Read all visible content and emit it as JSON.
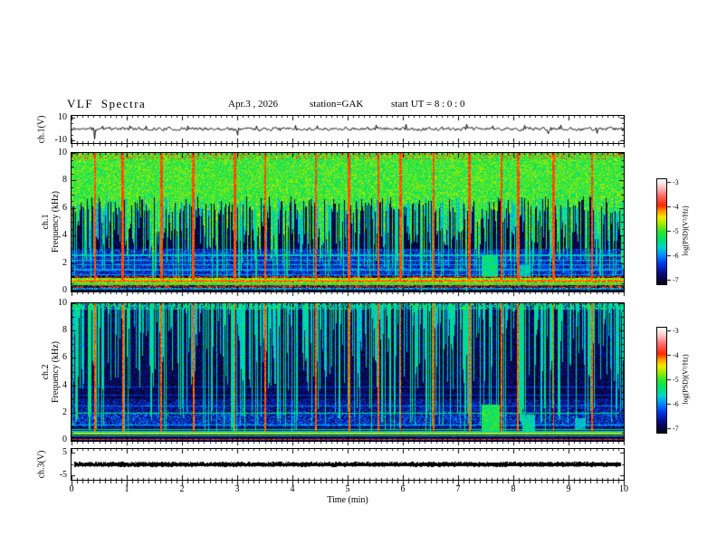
{
  "header": {
    "title": "VLF Spectra",
    "date": "Apr.3 , 2026",
    "station": "station=GAK",
    "start_ut": "start UT =  8 : 0 : 0"
  },
  "time_axis": {
    "label": "Time (min)",
    "min": 0,
    "max": 10,
    "major_ticks": [
      0,
      1,
      2,
      3,
      4,
      5,
      6,
      7,
      8,
      9,
      10
    ],
    "minor_step": 0.1
  },
  "panels": {
    "wave1": {
      "label": "ch.1(V)",
      "yticks": [
        10,
        -10
      ],
      "ylim": [
        -11.5,
        11.5
      ]
    },
    "spec1": {
      "label_line1": "ch.1",
      "label_line2": "Frequency (kHz)",
      "yticks": [
        0,
        2,
        4,
        6,
        8,
        10
      ],
      "ylim": [
        0,
        10
      ]
    },
    "spec2": {
      "label_line1": "ch.2",
      "label_line2": "Frequency (kHz)",
      "yticks": [
        0,
        2,
        4,
        6,
        8,
        10
      ],
      "ylim": [
        0,
        10
      ]
    },
    "wave3": {
      "label": "ch.3(V)",
      "yticks": [
        5,
        -5
      ],
      "ylim": [
        -6.5,
        6.5
      ]
    }
  },
  "colorbar": {
    "label": "log(PSD)(V²/Hz)",
    "ticks": [
      -3,
      -4,
      -5,
      -6,
      -7
    ],
    "max": -3,
    "min": -7,
    "stops": [
      [
        -7,
        5,
        5,
        25
      ],
      [
        -6.6,
        8,
        8,
        130
      ],
      [
        -6.2,
        0,
        60,
        235
      ],
      [
        -5.9,
        0,
        140,
        255
      ],
      [
        -5.6,
        0,
        215,
        205
      ],
      [
        -5.3,
        0,
        225,
        110
      ],
      [
        -5.0,
        45,
        230,
        45
      ],
      [
        -4.7,
        160,
        235,
        0
      ],
      [
        -4.45,
        240,
        235,
        0
      ],
      [
        -4.2,
        255,
        150,
        0
      ],
      [
        -4.0,
        255,
        40,
        0
      ],
      [
        -3.6,
        255,
        110,
        110
      ],
      [
        -3.3,
        255,
        195,
        195
      ],
      [
        -3.0,
        255,
        255,
        255
      ]
    ]
  },
  "chart_data": [
    {
      "id": "ch1_waveform",
      "type": "line",
      "channel": "ch.1(V)",
      "xlim": [
        0,
        10
      ],
      "ylim": [
        -10,
        10
      ],
      "xlabel": "Time (min)",
      "baseline": 0.5,
      "noise_sigma": 1.0,
      "seed": 11,
      "spikes": [
        [
          0.41,
          -8.5
        ],
        [
          0.55,
          3.0
        ],
        [
          1.05,
          3.2
        ],
        [
          1.35,
          3.0
        ],
        [
          2.1,
          3.2
        ],
        [
          3.0,
          -5.0
        ],
        [
          3.35,
          3.0
        ],
        [
          4.05,
          3.5
        ],
        [
          4.45,
          3.2
        ],
        [
          5.5,
          3.8
        ],
        [
          6.05,
          4.5
        ],
        [
          7.15,
          4.5
        ],
        [
          7.62,
          3.2
        ],
        [
          8.2,
          3.6
        ],
        [
          8.62,
          -3.8
        ],
        [
          8.85,
          3.8
        ],
        [
          9.5,
          -3.5
        ]
      ]
    },
    {
      "id": "ch1_spectrogram",
      "type": "heatmap",
      "channel": "ch.1",
      "xlim": [
        0,
        10
      ],
      "ylim": [
        0,
        10
      ],
      "zlim": [
        -7,
        -3
      ],
      "seed": 23,
      "top": {
        "base": 6.3,
        "noise": 0.6,
        "icicle_prob": 0.45,
        "icicle_depth": 3.8,
        "level": -5.0,
        "speck": 0.45,
        "tip_prob": 0.22,
        "tip_level": -4.1
      },
      "bands": [
        {
          "f0": 0.97,
          "f1": 1.07,
          "mix_p": 0.5,
          "level_hi": -4.0,
          "level_lo": -6.9,
          "speck": 0.1
        },
        {
          "f0": 0.85,
          "f1": 0.97,
          "base": -4.8,
          "speck": 0.35
        },
        {
          "f0": 0.6,
          "f1": 0.85,
          "base": -4.3,
          "speck": 0.4
        },
        {
          "f0": 0.4,
          "f1": 0.6,
          "base": -5.0,
          "speck": 0.3
        },
        {
          "f0": 0.26,
          "f1": 0.4,
          "mix_p": 0.45,
          "level_hi": -3.95,
          "level_lo": -6.8,
          "speck": 0.15
        },
        {
          "f0": 0.1,
          "f1": 0.26,
          "base": -5.8,
          "speck": 0.55
        },
        {
          "f0": 0.0,
          "f1": 0.1,
          "base": -6.85,
          "speck": 0.2
        },
        {
          "f0": 1.07,
          "f1": 3.05,
          "base": -6.35,
          "speck": 0.5
        },
        {
          "f0": 3.05,
          "f1": 10.01,
          "base": -6.85,
          "speck": 0.35
        }
      ],
      "hlines": [
        {
          "f": 6.9,
          "w": 0.035,
          "level": -5.6
        },
        {
          "f": 2.6,
          "w": 0.05,
          "level": -5.7
        },
        {
          "f": 2.25,
          "w": 0.05,
          "level": -5.75
        },
        {
          "f": 1.9,
          "w": 0.05,
          "level": -5.8
        },
        {
          "f": 1.55,
          "w": 0.05,
          "level": -5.85
        },
        {
          "f": 1.2,
          "w": 0.05,
          "level": -5.9
        },
        {
          "f": 0.72,
          "w": 0.04,
          "level": -4.0
        }
      ],
      "streaks": {
        "minor_prob": 0.45,
        "minor_level": -5.6,
        "minor_depth": 4,
        "tall_prob": 0.17,
        "tall_level": -5.4,
        "tall_bottom_min": 0.45,
        "tall_bottom_var": 1.9,
        "red_times": [
          0.42,
          0.92,
          1.62,
          2.2,
          2.95,
          3.5,
          4.42,
          5.02,
          5.55,
          5.95,
          6.55,
          7.2,
          7.78,
          8.08,
          8.72,
          9.42
        ],
        "red_level": -4.05,
        "red_bottom": 0.85,
        "red_halfwidth": 0.02
      },
      "blobs": [
        {
          "t0": 7.42,
          "t1": 7.72,
          "f0": 1.0,
          "f1": 2.6,
          "level": -5.35
        },
        {
          "t0": 8.1,
          "t1": 8.3,
          "f0": 1.0,
          "f1": 1.9,
          "level": -5.6
        }
      ]
    },
    {
      "id": "ch2_spectrogram",
      "type": "heatmap",
      "channel": "ch.2",
      "xlim": [
        0,
        10
      ],
      "ylim": [
        0,
        10
      ],
      "zlim": [
        -7,
        -3
      ],
      "seed": 37,
      "top": null,
      "bands": [
        {
          "f0": 9.55,
          "f1": 10.01,
          "base": -5.9,
          "speck": 1.1
        },
        {
          "f0": 3.0,
          "f1": 9.55,
          "base": -6.8,
          "speck": 0.4
        },
        {
          "f0": 2.1,
          "f1": 3.0,
          "base": -6.55,
          "speck": 0.5
        },
        {
          "f0": 1.0,
          "f1": 2.1,
          "base": -6.35,
          "speck": 0.55
        },
        {
          "f0": 0.86,
          "f1": 1.0,
          "base": -6.6,
          "speck": 0.3
        },
        {
          "f0": 0.0,
          "f1": 0.86,
          "base": -6.7,
          "speck": 0.3
        }
      ],
      "hlines": [
        {
          "f": 3.9,
          "w": 0.04,
          "level": -6.25
        },
        {
          "f": 3.3,
          "w": 0.04,
          "level": -6.3
        },
        {
          "f": 2.5,
          "w": 0.04,
          "level": -6.0
        },
        {
          "f": 2.0,
          "w": 0.05,
          "level": -5.35
        },
        {
          "f": 1.15,
          "w": 0.04,
          "level": -5.8
        },
        {
          "f": 0.8,
          "w": 0.045,
          "level": -5.15
        },
        {
          "f": 0.63,
          "w": 0.04,
          "level": -5.6
        },
        {
          "f": 0.49,
          "w": 0.055,
          "level": -4.6
        },
        {
          "f": 0.34,
          "w": 0.04,
          "level": -5.2
        },
        {
          "f": 0.07,
          "w": 0.04,
          "level": -4.05
        }
      ],
      "streaks": {
        "minor_prob": 0.5,
        "minor_level": -5.55,
        "minor_depth": 6,
        "tall_prob": 0.22,
        "tall_level": -5.45,
        "tall_bottom_min": 0.4,
        "tall_bottom_var": 2.0,
        "red_times": [
          0.42,
          0.92,
          1.62,
          2.2,
          2.95,
          3.5,
          4.42,
          5.02,
          5.55,
          5.95,
          6.55,
          7.2,
          7.78,
          8.08,
          8.72,
          9.42
        ],
        "red_level": -4.1,
        "red_bottom": 0.6,
        "red_halfwidth": 0.015
      },
      "blobs": [
        {
          "t0": 7.42,
          "t1": 7.75,
          "f0": 0.7,
          "f1": 2.6,
          "level": -5.15
        },
        {
          "t0": 8.15,
          "t1": 8.38,
          "f0": 0.7,
          "f1": 1.9,
          "level": -5.5
        },
        {
          "t0": 9.1,
          "t1": 9.3,
          "f0": 0.8,
          "f1": 1.6,
          "level": -5.7
        }
      ]
    },
    {
      "id": "ch3_waveform",
      "type": "line",
      "channel": "ch.3(V)",
      "xlim": [
        0,
        10
      ],
      "ylim": [
        -5,
        5
      ],
      "value": 0.0,
      "seed": 51
    }
  ]
}
